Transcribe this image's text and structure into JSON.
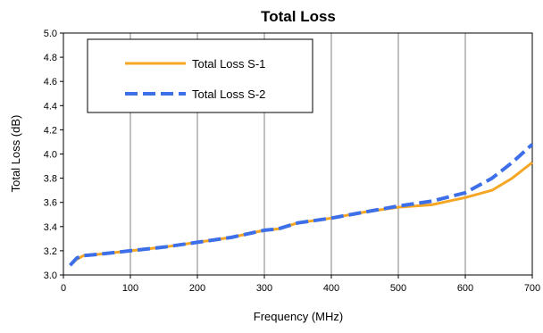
{
  "chart_data": {
    "type": "line",
    "title": "Total Loss",
    "xlabel": "Frequency (MHz)",
    "ylabel": "Total Loss (dB)",
    "xlim": [
      0,
      700
    ],
    "ylim": [
      3.0,
      5.0
    ],
    "xticks": [
      0,
      100,
      200,
      300,
      400,
      500,
      600,
      700
    ],
    "yticks": [
      3.0,
      3.2,
      3.4,
      3.6,
      3.8,
      4.0,
      4.2,
      4.4,
      4.6,
      4.8,
      5.0
    ],
    "ytick_labels": [
      "3.0",
      "3.2",
      "3.4",
      "3.6",
      "3.8",
      "4.0",
      "4.2",
      "4.4",
      "4.6",
      "4.8",
      "5.0"
    ],
    "grid": "vertical",
    "legend_position": "top-left",
    "series": [
      {
        "name": "Total Loss S-1",
        "color": "#f5a623",
        "style": "solid",
        "x": [
          10,
          20,
          30,
          50,
          100,
          150,
          200,
          250,
          300,
          320,
          350,
          400,
          450,
          500,
          550,
          600,
          640,
          670,
          700
        ],
        "y": [
          3.08,
          3.13,
          3.16,
          3.17,
          3.2,
          3.23,
          3.27,
          3.31,
          3.37,
          3.38,
          3.43,
          3.47,
          3.52,
          3.56,
          3.58,
          3.64,
          3.7,
          3.8,
          3.93
        ]
      },
      {
        "name": "Total Loss S-2",
        "color": "#3d6fe8",
        "style": "dashed",
        "x": [
          10,
          20,
          30,
          50,
          100,
          150,
          200,
          250,
          300,
          320,
          350,
          400,
          450,
          500,
          550,
          600,
          640,
          670,
          700
        ],
        "y": [
          3.08,
          3.14,
          3.16,
          3.17,
          3.2,
          3.23,
          3.27,
          3.31,
          3.37,
          3.38,
          3.43,
          3.47,
          3.52,
          3.57,
          3.61,
          3.68,
          3.8,
          3.93,
          4.08
        ]
      }
    ]
  }
}
